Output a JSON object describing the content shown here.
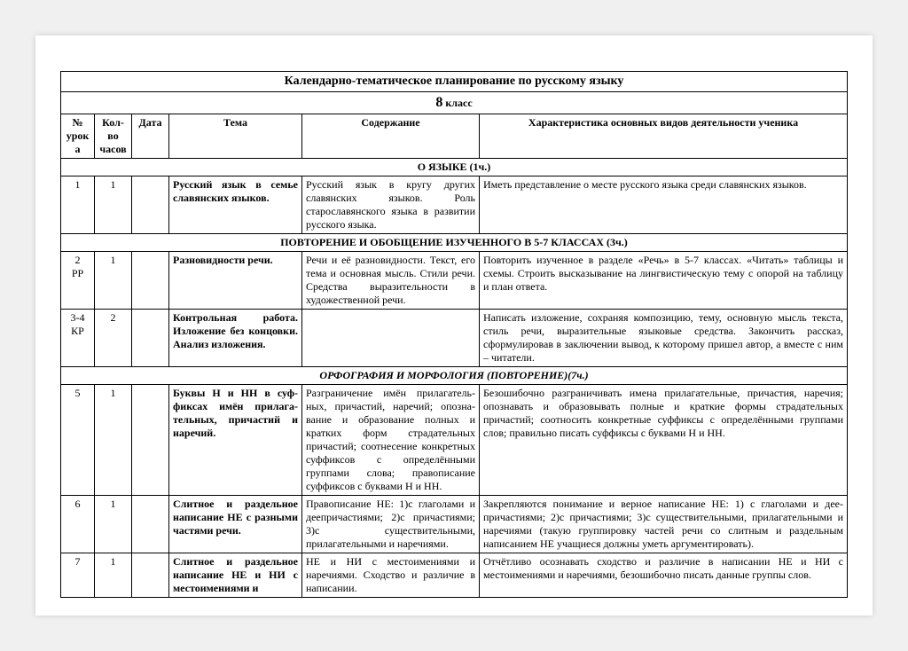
{
  "title": "Календарно-тематическое планирование по русскому языку",
  "grade_num": "8",
  "grade_word": "класс",
  "headers": {
    "num": "№ урока",
    "hours": "Кол-во часов",
    "date": "Дата",
    "topic": "Тема",
    "content": "Содержание",
    "activity": "Характеристика основных видов деятельности ученика"
  },
  "sections": {
    "s1": "О ЯЗЫКЕ (1ч.)",
    "s2": "ПОВТОРЕНИЕ И ОБОБЩЕНИЕ ИЗУЧЕННОГО В 5-7 КЛАССАХ (3ч.)",
    "s3": "ОРФОГРАФИЯ И МОРФОЛОГИЯ (ПОВТОРЕНИЕ)(7ч.)"
  },
  "rows": {
    "r1": {
      "num": "1",
      "hours": "1",
      "topic": "Русский язык в семье славянских языков.",
      "content": "Русский язык в кругу других славянских языков. Роль старославянского языка в развитии русского языка.",
      "activity": "Иметь представление о месте русского языка среди славянских языков."
    },
    "r2": {
      "num": "2\nРР",
      "hours": "1",
      "topic": "Разновидности речи.",
      "content": "Речи и её разновидности. Текст, его тема и основная мысль. Стили речи. Средства вырази­тельности в художественной речи.",
      "activity": "Повторить изученное в разделе «Речь» в 5-7 классах. «Читать» таблицы и схемы. Строить высказывание на лингвистическую тему с опорой на таблицу и план ответа."
    },
    "r3": {
      "num": "3-4\nКР",
      "hours": "2",
      "topic": "Контрольная работа. Изложение без концовки. Анализ изложения.",
      "content": "",
      "activity": "Написать изложение, сохраняя композицию, тему, основную мысль текста, стиль речи, выразительные языковые средства. Закончить рассказ, сформулировав в заключении вывод, к которому пришел автор, а вместе с ним – читатели."
    },
    "r5": {
      "num": "5",
      "hours": "1",
      "topic": "Буквы Н и НН в суф­фиксах имён прилага­тельных, причастий и наречий.",
      "content": "Разграничение имён прилагатель­ных, причастий, наречий; опозна­вание и образование полных и кратких форм страдательных причастий; соотнесение конкрет­ных суффиксов с определённы­ми группами слова; правописа­ние суффиксов с буквами Н и НН.",
      "activity": "Безошибочно разграничивать имена прилагательные, причастия, наречия; опознавать и образовывать полные и краткие формы страдательных причастий; соотносить конкретные суффиксы с определёнными группами слов; правильно писать суффиксы с буквами Н и НН."
    },
    "r6": {
      "num": "6",
      "hours": "1",
      "topic": "Слитное и раздельное написание НЕ с разны­ми частями речи.",
      "content": "Правописание НЕ: 1)с глаголами и деепричастиями; 2)с причас­тиями; 3)с существительными, прилагательными и наречиями.",
      "activity": "Закрепляются понимание и верное написание НЕ: 1) с глаголами и дее­причастиями; 2)с причастиями; 3)с существительными, прилага­тельными и наречиями (такую группировку частей речи со слитным и раздельным написанием НЕ учащиеся должны уметь аргументировать)."
    },
    "r7": {
      "num": "7",
      "hours": "1",
      "topic": "Слитное и раздельное написание НЕ и НИ с местоимениями и",
      "content": "НЕ и НИ с местоимениями и наречиями. Сходство и различие в написании.",
      "activity": "Отчётливо осознавать сходство и различие в написании НЕ и НИ с местоимениями и наречиями, безошибочно писать данные группы слов."
    }
  }
}
